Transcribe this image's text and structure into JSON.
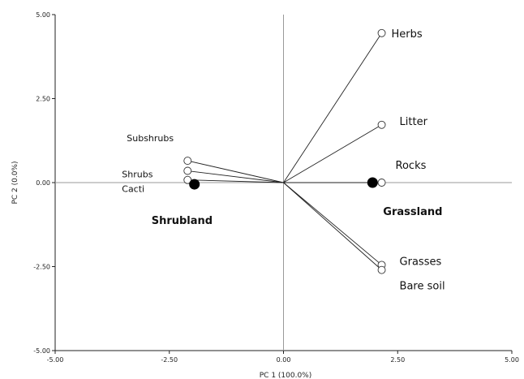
{
  "chart_data": {
    "type": "scatter",
    "xlabel": "PC 1 (100.0%)",
    "ylabel": "PC 2 (0.0%)",
    "xlim": [
      -5,
      5
    ],
    "ylim": [
      -5,
      5
    ],
    "xticks": [
      "-5.00",
      "-2.50",
      "0.00",
      "2.50",
      "5.00"
    ],
    "yticks": [
      "5.00",
      "2.50",
      "0.00",
      "-2.50",
      "-5.00"
    ],
    "variables": [
      {
        "name": "Herbs",
        "x": 2.15,
        "y": 4.45
      },
      {
        "name": "Litter",
        "x": 2.15,
        "y": 1.72
      },
      {
        "name": "Rocks",
        "x": 2.15,
        "y": 0.0
      },
      {
        "name": "Grasses",
        "x": 2.15,
        "y": -2.45
      },
      {
        "name": "Bare soil",
        "x": 2.15,
        "y": -2.6
      },
      {
        "name": "Subshrubs",
        "x": -2.1,
        "y": 0.65
      },
      {
        "name": "Shrubs",
        "x": -2.1,
        "y": 0.35
      },
      {
        "name": "Cacti",
        "x": -2.1,
        "y": 0.08
      }
    ],
    "sites": [
      {
        "name": "Shrubland",
        "x": -1.95,
        "y": -0.05
      },
      {
        "name": "Grassland",
        "x": 1.95,
        "y": 0.0
      }
    ]
  }
}
